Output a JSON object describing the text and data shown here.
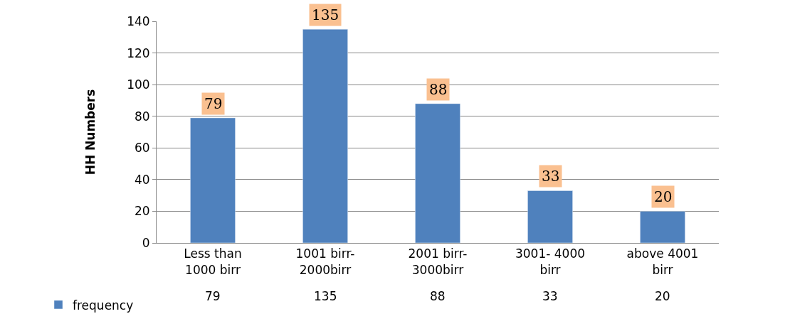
{
  "chart_data": {
    "type": "bar",
    "ylabel": "HH Numbers",
    "categories": [
      "Less than 1000 birr",
      "1001 birr-2000birr",
      "2001 birr-3000birr",
      "3001- 4000 birr",
      "above 4001 birr"
    ],
    "series": [
      {
        "name": "frequency",
        "color": "#4f81bd",
        "values": [
          79,
          135,
          88,
          33,
          20
        ],
        "value_labels": [
          "79",
          "135",
          "88",
          "33",
          "20"
        ]
      }
    ],
    "ylim": [
      0,
      140
    ],
    "yticks": [
      0,
      20,
      40,
      60,
      80,
      100,
      120,
      140
    ],
    "grid": "y",
    "legend": "bottom left",
    "annotations": [
      "79",
      "135",
      "88",
      "33",
      "20"
    ]
  }
}
